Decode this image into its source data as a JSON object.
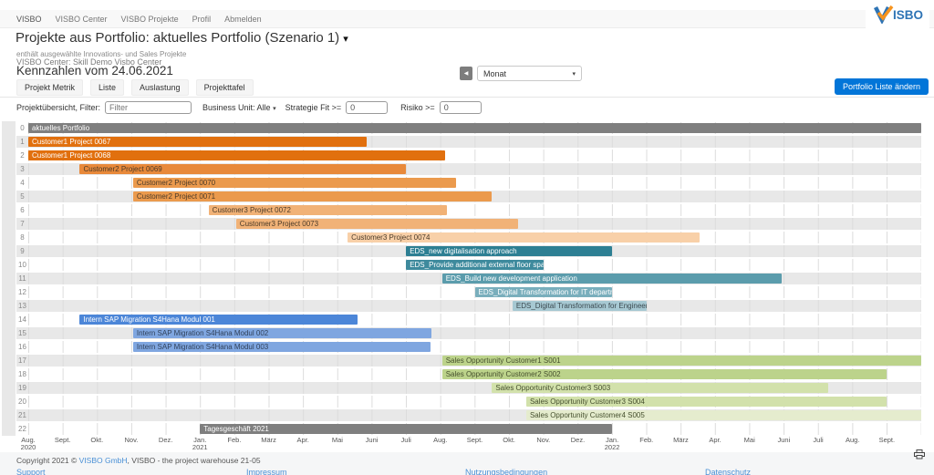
{
  "navbar": {
    "brand": "VISBO",
    "items": [
      {
        "label": "VISBO Center"
      },
      {
        "label": "VISBO Projekte"
      },
      {
        "label": "Profil"
      },
      {
        "label": "Abmelden"
      }
    ],
    "logo_text": "ISBO",
    "logo_blue": "#2e74b5",
    "logo_orange": "#f7941e"
  },
  "header": {
    "title": "Projekte aus Portfolio: aktuelles Portfolio (Szenario 1)",
    "title_caret": "▾",
    "subtitle1": "enthält ausgewählte Innovations- und Sales Projekte",
    "subtitle2": "VISBO Center: Skill Demo Visbo Center",
    "kennzahlen": "Kennzahlen vom 24.06.2021"
  },
  "controls": {
    "back_icon": "◀",
    "period": {
      "value": "Monat",
      "caret": "▾"
    },
    "tabs": [
      "Projekt Metrik",
      "Liste",
      "Auslastung",
      "Projekttafel"
    ],
    "portfolio_button": "Portfolio Liste ändern",
    "accent_color": "#0275d8"
  },
  "filter": {
    "label": "Projektübersicht, Filter:",
    "filter_placeholder": "Filter",
    "business_unit": "Business Unit: Alle",
    "business_unit_caret": "▾",
    "strategie_label": "Strategie Fit >=",
    "strategie_value": "0",
    "risiko_label": "Risiko >=",
    "risiko_value": "0"
  },
  "chart_data": {
    "type": "gantt",
    "title": "Projekte aus Portfolio: aktuelles Portfolio (Szenario 1)",
    "time_unit": "Monat",
    "timeline": {
      "months": 26,
      "start_label": "Aug. 2020",
      "end_label": "Sept. 2022",
      "labels": [
        {
          "label": "Aug.",
          "year": "2020"
        },
        {
          "label": "Sept."
        },
        {
          "label": "Okt."
        },
        {
          "label": "Nov."
        },
        {
          "label": "Dez."
        },
        {
          "label": "Jan.",
          "year": "2021"
        },
        {
          "label": "Feb."
        },
        {
          "label": "März"
        },
        {
          "label": "Apr."
        },
        {
          "label": "Mai"
        },
        {
          "label": "Juni"
        },
        {
          "label": "Juli"
        },
        {
          "label": "Aug."
        },
        {
          "label": "Sept."
        },
        {
          "label": "Okt."
        },
        {
          "label": "Nov."
        },
        {
          "label": "Dez."
        },
        {
          "label": "Jan.",
          "year": "2022"
        },
        {
          "label": "Feb."
        },
        {
          "label": "März"
        },
        {
          "label": "Apr."
        },
        {
          "label": "Mai"
        },
        {
          "label": "Juni"
        },
        {
          "label": "Juli"
        },
        {
          "label": "Aug."
        },
        {
          "label": "Sept."
        }
      ]
    },
    "rows": [
      {
        "num": 0,
        "label": "aktuelles Portfolio",
        "start": 0,
        "end": 26,
        "color": "#7f7f7f",
        "text_color": "#ffffff"
      },
      {
        "num": 1,
        "label": "Customer1 Project 0067",
        "start": 0,
        "end": 9.85,
        "color": "#e1700e",
        "text_color": "#ffffff"
      },
      {
        "num": 2,
        "label": "Customer1 Project 0068",
        "start": 0,
        "end": 12.15,
        "color": "#e1700e",
        "text_color": "#ffffff"
      },
      {
        "num": 3,
        "label": "Customer2 Project 0069",
        "start": 1.5,
        "end": 11.0,
        "color": "#e8893a",
        "text_color": "#4a3a28"
      },
      {
        "num": 4,
        "label": "Customer2 Project 0070",
        "start": 3.05,
        "end": 12.45,
        "color": "#eb9a4d",
        "text_color": "#4a3a28"
      },
      {
        "num": 5,
        "label": "Customer2 Project 0071",
        "start": 3.05,
        "end": 13.5,
        "color": "#eb9a4d",
        "text_color": "#4a3a28"
      },
      {
        "num": 6,
        "label": "Customer3 Project 0072",
        "start": 5.25,
        "end": 12.2,
        "color": "#f1b277",
        "text_color": "#4a3a28"
      },
      {
        "num": 7,
        "label": "Customer3 Project 0073",
        "start": 6.05,
        "end": 14.25,
        "color": "#f1b277",
        "text_color": "#4a3a28"
      },
      {
        "num": 8,
        "label": "Customer3 Project 0074",
        "start": 9.3,
        "end": 19.55,
        "color": "#f8d0a8",
        "text_color": "#4a3a28"
      },
      {
        "num": 9,
        "label": "EDS_new digitalisation approach",
        "start": 11.0,
        "end": 17.0,
        "color": "#2d7f93",
        "text_color": "#ffffff"
      },
      {
        "num": 10,
        "label": "EDS_Provide additional external floor space",
        "start": 11.0,
        "end": 15.0,
        "color": "#3e8a9d",
        "text_color": "#ffffff"
      },
      {
        "num": 11,
        "label": "EDS_Build new development application",
        "start": 12.05,
        "end": 21.95,
        "color": "#5b9cac",
        "text_color": "#ffffff"
      },
      {
        "num": 12,
        "label": "EDS_Digital Transformation for IT department",
        "start": 13.0,
        "end": 17.0,
        "color": "#79aebc",
        "text_color": "#ffffff"
      },
      {
        "num": 13,
        "label": "EDS_Digital Transformation for Engineering",
        "start": 14.1,
        "end": 18.0,
        "color": "#a6c8d2",
        "text_color": "#3c4a50"
      },
      {
        "num": 14,
        "label": "Intern SAP Migration S4Hana Modul 001",
        "start": 1.5,
        "end": 9.6,
        "color": "#4c86d8",
        "text_color": "#ffffff"
      },
      {
        "num": 15,
        "label": "Intern SAP Migration S4Hana Modul 002",
        "start": 3.05,
        "end": 11.75,
        "color": "#7fa6e0",
        "text_color": "#31425c"
      },
      {
        "num": 16,
        "label": "Intern SAP Migration S4Hana Modul 003",
        "start": 3.05,
        "end": 11.7,
        "color": "#7fa6e0",
        "text_color": "#31425c"
      },
      {
        "num": 17,
        "label": "Sales Opportunity Customer1 S001",
        "start": 12.05,
        "end": 26,
        "color": "#bcd38b",
        "text_color": "#46502e"
      },
      {
        "num": 18,
        "label": "Sales Opportunity Customer2 S002",
        "start": 12.05,
        "end": 25.0,
        "color": "#bcd38b",
        "text_color": "#46502e"
      },
      {
        "num": 19,
        "label": "Sales Opportunity Customer3 S003",
        "start": 13.5,
        "end": 23.3,
        "color": "#d2e1ab",
        "text_color": "#46502e"
      },
      {
        "num": 20,
        "label": "Sales Opportunity Customer3 S004",
        "start": 14.5,
        "end": 25.0,
        "color": "#d2e1ab",
        "text_color": "#46502e"
      },
      {
        "num": 21,
        "label": "Sales Opportunity Customer4 S005",
        "start": 14.5,
        "end": 26,
        "color": "#e5ecce",
        "text_color": "#46502e"
      },
      {
        "num": 22,
        "label": "Tagesgeschäft 2021",
        "start": 5.0,
        "end": 17.0,
        "color": "#7f7f7f",
        "text_color": "#ffffff"
      }
    ]
  },
  "footer": {
    "copyright_prefix": "Copyright 2021 © ",
    "copyright_link": "VISBO GmbH",
    "copyright_suffix": ", VISBO - the project warehouse 21-05",
    "links": [
      "Support",
      "Impressum",
      "Nutzungsbedingungen",
      "Datenschutz"
    ]
  }
}
